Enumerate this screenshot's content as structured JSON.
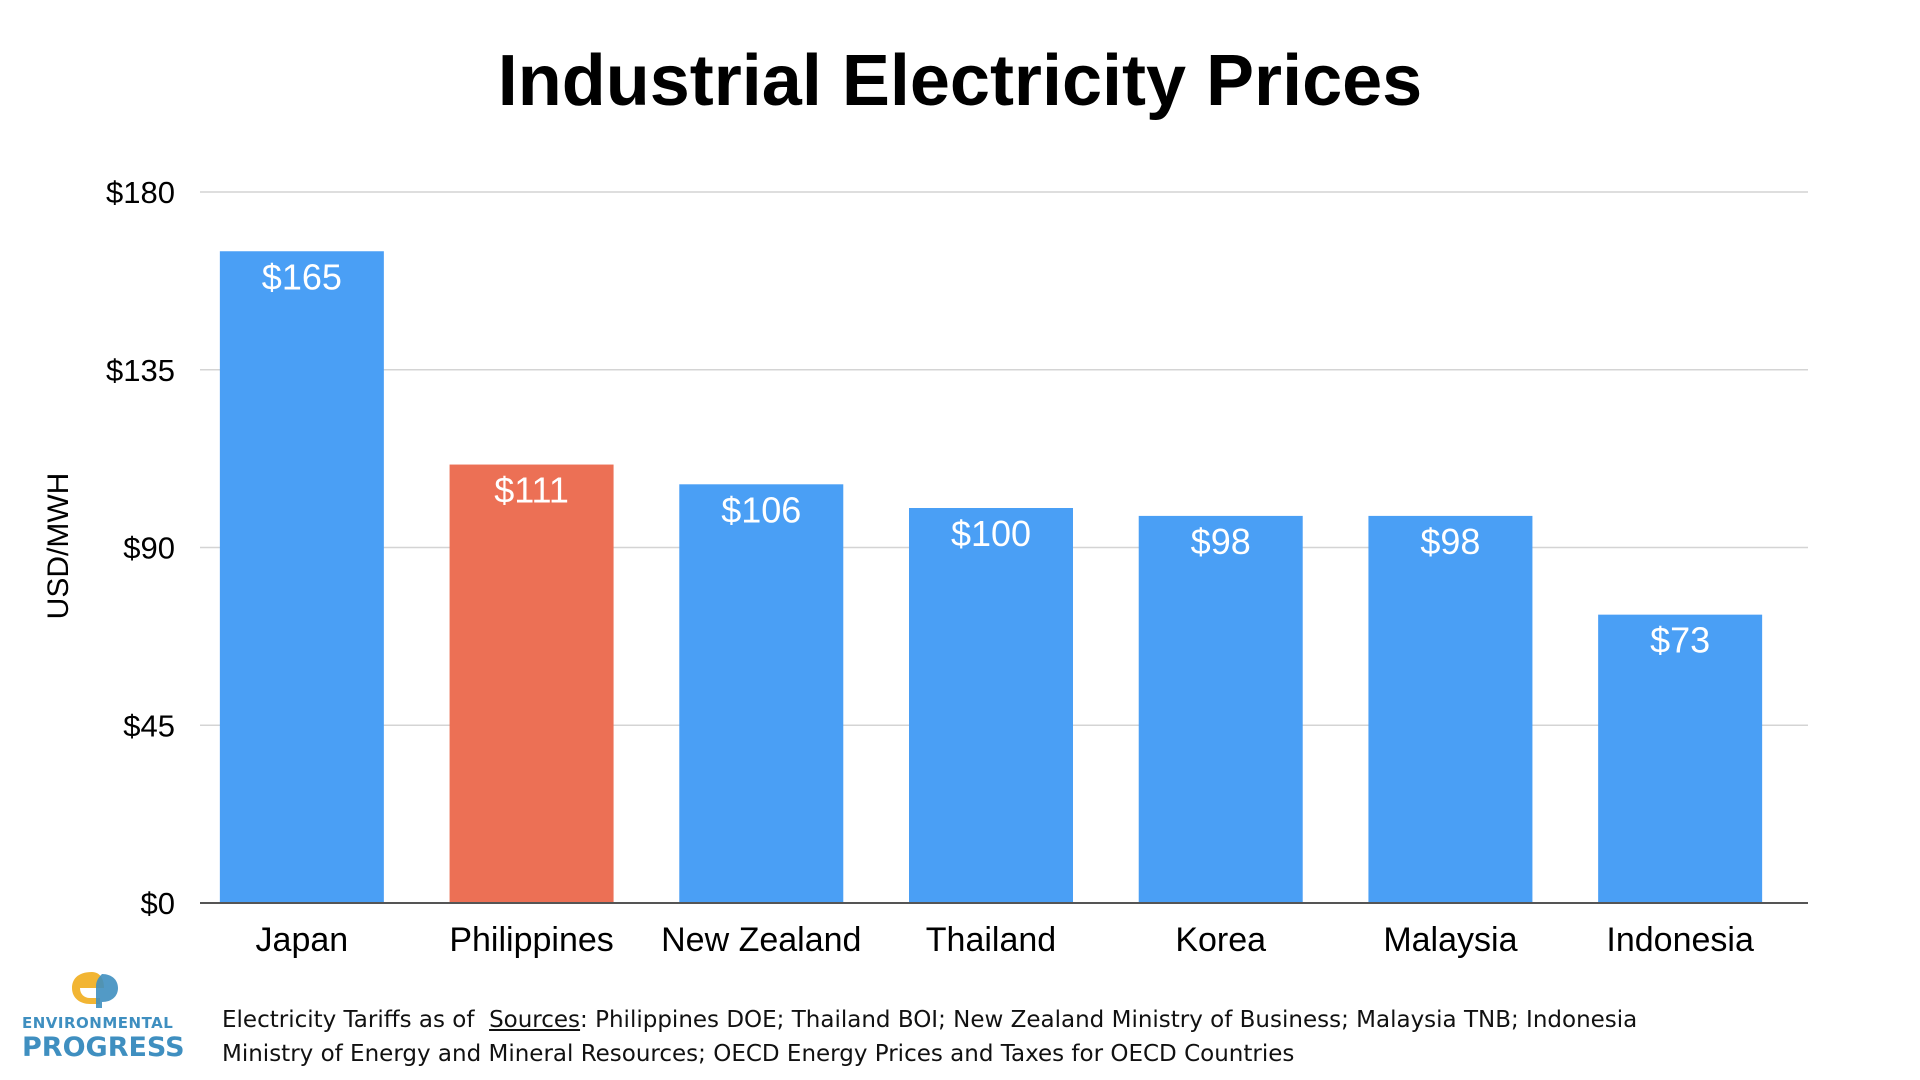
{
  "chart_data": {
    "type": "bar",
    "title": "Industrial Electricity Prices",
    "ylabel": "USD/MWH",
    "xlabel": "",
    "ylim": [
      0,
      180
    ],
    "yticks": [
      0,
      45,
      90,
      135,
      180
    ],
    "ytick_labels": [
      "$0",
      "$45",
      "$90",
      "$135",
      "$180"
    ],
    "grid": true,
    "categories": [
      "Japan",
      "Philippines",
      "New Zealand",
      "Thailand",
      "Korea",
      "Malaysia",
      "Indonesia"
    ],
    "values": [
      165,
      111,
      106,
      100,
      98,
      98,
      73
    ],
    "value_labels": [
      "$165",
      "$111",
      "$106",
      "$100",
      "$98",
      "$98",
      "$73"
    ],
    "colors": [
      "#4a9ff5",
      "#ec7055",
      "#4a9ff5",
      "#4a9ff5",
      "#4a9ff5",
      "#4a9ff5",
      "#4a9ff5"
    ]
  },
  "colors": {
    "bar_default": "#4a9ff5",
    "bar_highlight": "#ec7055",
    "gridline": "#d4d4d4",
    "axis": "#555555"
  },
  "logo": {
    "icon_name": "ep-logo-icon",
    "line1": "ENVIRONMENTAL",
    "line2": "PROGRESS"
  },
  "footnote": {
    "prefix": "Electricity Tariffs as of  ",
    "sources_label": "Sources",
    "text": ": Philippines DOE; Thailand BOI; New Zealand Ministry of Business; Malaysia TNB; Indonesia Ministry of Energy and Mineral Resources; OECD Energy Prices and Taxes for OECD Countries"
  }
}
